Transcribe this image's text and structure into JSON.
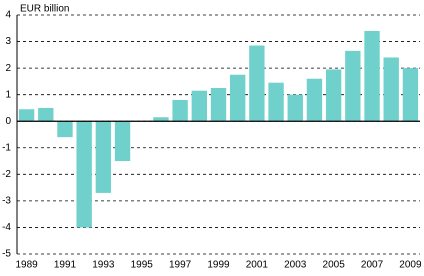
{
  "chart_data": {
    "type": "bar",
    "ylabel": "EUR billion",
    "categories": [
      "1989",
      null,
      "1991",
      null,
      "1993",
      null,
      "1995",
      null,
      "1997",
      null,
      "1999",
      null,
      "2001",
      null,
      "2003",
      null,
      "2005",
      null,
      "2007",
      null,
      "2009"
    ],
    "values": [
      0.45,
      0.5,
      -0.6,
      -4.0,
      -2.7,
      -1.5,
      0,
      0.15,
      0.8,
      1.15,
      1.25,
      1.75,
      2.85,
      1.45,
      1.0,
      1.6,
      1.95,
      2.65,
      3.4,
      2.4,
      2.0
    ],
    "color": "#6fd0cc",
    "ylim": [
      -5,
      4
    ],
    "yticks": [
      -5,
      -4,
      -3,
      -2,
      -1,
      0,
      1,
      2,
      3,
      4
    ],
    "grid": true
  }
}
